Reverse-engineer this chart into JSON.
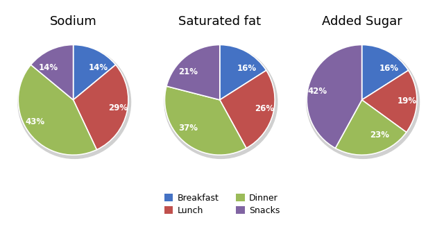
{
  "charts": [
    {
      "title": "Sodium",
      "values": [
        14,
        29,
        43,
        14
      ],
      "labels": [
        "14%",
        "29%",
        "43%",
        "14%"
      ],
      "startangle": 90
    },
    {
      "title": "Saturated fat",
      "values": [
        16,
        26,
        37,
        21
      ],
      "labels": [
        "16%",
        "26%",
        "37%",
        "21%"
      ],
      "startangle": 90
    },
    {
      "title": "Added Sugar",
      "values": [
        16,
        19,
        23,
        42
      ],
      "labels": [
        "16%",
        "19%",
        "23%",
        "42%"
      ],
      "startangle": 90
    }
  ],
  "colors": [
    "#4472C4",
    "#C0504D",
    "#9BBB59",
    "#8064A2"
  ],
  "legend_labels": [
    "Breakfast",
    "Lunch",
    "Dinner",
    "Snacks"
  ],
  "figsize": [
    6.4,
    3.27
  ],
  "dpi": 100,
  "title_fontsize": 13,
  "label_fontsize": 8.5,
  "shadow_color": "#d0d0d0"
}
